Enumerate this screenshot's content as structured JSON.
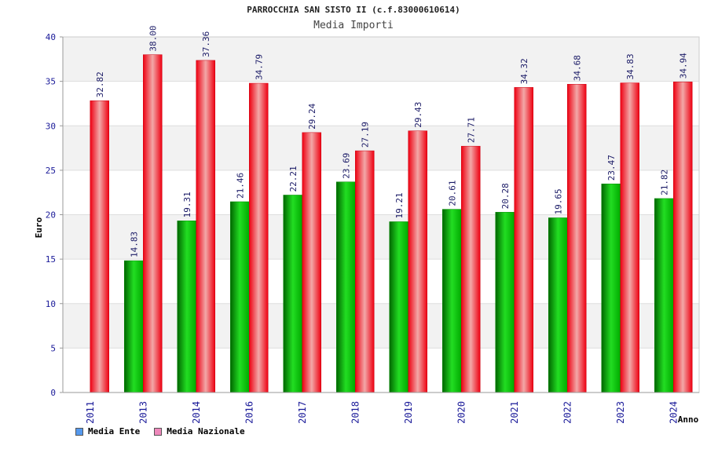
{
  "chart_data": {
    "type": "bar",
    "title": "PARROCCHIA SAN SISTO II (c.f.83000610614)",
    "subtitle": "Media Importi",
    "xlabel": "Anno",
    "ylabel": "Euro",
    "ylim": [
      0,
      40
    ],
    "yticks": [
      0,
      5,
      10,
      15,
      20,
      25,
      30,
      35,
      40
    ],
    "categories": [
      "2011",
      "2013",
      "2014",
      "2016",
      "2017",
      "2018",
      "2019",
      "2020",
      "2021",
      "2022",
      "2023",
      "2024"
    ],
    "series": [
      {
        "name": "Media Ente",
        "values": [
          null,
          14.83,
          19.31,
          21.46,
          22.21,
          23.69,
          19.21,
          20.61,
          20.28,
          19.65,
          23.47,
          21.82
        ],
        "color": "#00cc00"
      },
      {
        "name": "Media Nazionale",
        "values": [
          32.82,
          38.0,
          37.36,
          34.79,
          29.24,
          27.19,
          29.43,
          27.71,
          34.32,
          34.68,
          34.83,
          34.94
        ],
        "color": "#ee1122"
      }
    ],
    "labels": [
      [
        "",
        "14.83",
        "19.31",
        "21.46",
        "22.21",
        "23.69",
        "19.21",
        "20.61",
        "20.28",
        "19.65",
        "23.47",
        "21.82"
      ],
      [
        "32.82",
        "38.00",
        "37.36",
        "34.79",
        "29.24",
        "27.19",
        "29.43",
        "27.71",
        "34.32",
        "34.68",
        "34.83",
        "34.94"
      ]
    ],
    "legend": {
      "placement": "bottom-left",
      "colors": [
        "#5599ee",
        "#ee88bb"
      ]
    },
    "grid": true
  }
}
